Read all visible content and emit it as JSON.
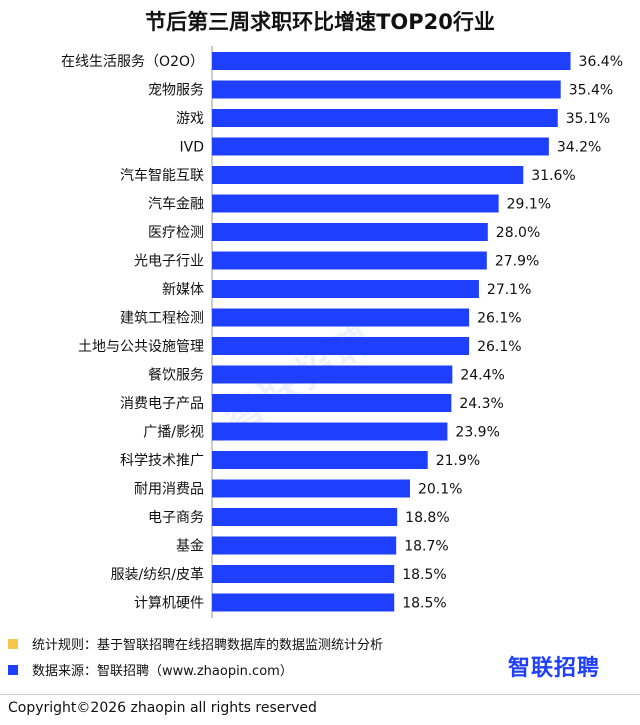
{
  "chart_data": {
    "type": "bar",
    "orientation": "horizontal",
    "title": "节后第三周求职环比增速TOP20行业",
    "categories": [
      "在线生活服务（O2O）",
      "宠物服务",
      "游戏",
      "IVD",
      "汽车智能互联",
      "汽车金融",
      "医疗检测",
      "光电子行业",
      "新媒体",
      "建筑工程检测",
      "土地与公共设施管理",
      "餐饮服务",
      "消费电子产品",
      "广播/影视",
      "科学技术推广",
      "耐用消费品",
      "电子商务",
      "基金",
      "服装/纺织/皮革",
      "计算机硬件"
    ],
    "values": [
      36.4,
      35.4,
      35.1,
      34.2,
      31.6,
      29.1,
      28.0,
      27.9,
      27.1,
      26.1,
      26.1,
      24.4,
      24.3,
      23.9,
      21.9,
      20.1,
      18.8,
      18.7,
      18.5,
      18.5
    ],
    "value_labels": [
      "36.4%",
      "35.4%",
      "35.1%",
      "34.2%",
      "31.6%",
      "29.1%",
      "28.0%",
      "27.9%",
      "27.1%",
      "26.1%",
      "26.1%",
      "24.4%",
      "24.3%",
      "23.9%",
      "21.9%",
      "20.1%",
      "18.8%",
      "18.7%",
      "18.5%",
      "18.5%"
    ],
    "unit": "%",
    "bar_color": "#1f3fff",
    "grid": false
  },
  "footer": {
    "note1": "统计规则：基于智联招聘在线招聘数据库的数据监测统计分析",
    "note1_color": "#f5c84b",
    "note2": "数据来源：智联招聘（www.zhaopin.com）",
    "note2_color": "#1f3fff",
    "logo": "智联招聘",
    "logo_color": "#1f3fff",
    "watermark": "智联招聘",
    "copyright": "Copyright©2026 zhaopin all rights reserved"
  }
}
